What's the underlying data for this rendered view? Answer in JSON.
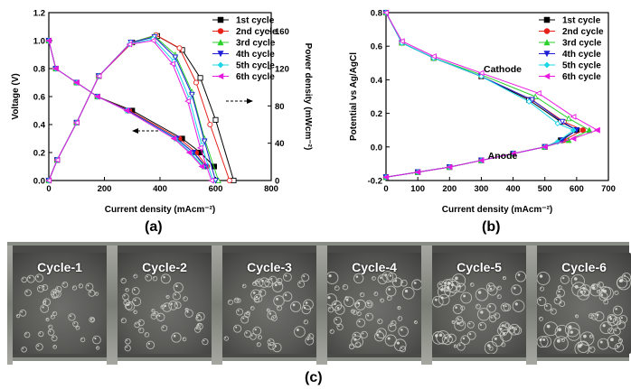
{
  "colors": {
    "1st cycle": "#000000",
    "2nd cycle": "#e8201a",
    "3rd cycle": "#2bd12b",
    "4th cycle": "#1f1fd6",
    "5th cycle": "#1ad6e8",
    "6th cycle": "#e81ae0"
  },
  "panel_labels": {
    "a": "(a)",
    "b": "(b)",
    "c": "(c)"
  },
  "chart_data": [
    {
      "type": "line",
      "panel": "(a)",
      "xlabel": "Current density (mAcm⁻²)",
      "ylabel": "Voltage (V)",
      "y2label": "Power density (mWcm⁻²)",
      "xlim": [
        0,
        800
      ],
      "ylim": [
        0,
        1.2
      ],
      "y2lim": [
        0,
        180
      ],
      "xticks": [
        "0",
        "200",
        "400",
        "600",
        "800"
      ],
      "yticks": [
        "0.0",
        "0.2",
        "0.4",
        "0.6",
        "0.8",
        "1.0",
        "1.2"
      ],
      "y2ticks": [
        "0",
        "40",
        "80",
        "120",
        "160"
      ],
      "legend": [
        "1st cycle",
        "2nd cycle",
        "3rd cycle",
        "4th cycle",
        "5th cycle",
        "6th cycle"
      ],
      "legend_position": "top-right",
      "voltage_series": [
        {
          "name": "1st cycle",
          "x": [
            0,
            25,
            100,
            175,
            300,
            480,
            545,
            595
          ],
          "y": [
            1.0,
            0.8,
            0.7,
            0.6,
            0.5,
            0.3,
            0.2,
            0.1
          ]
        },
        {
          "name": "2nd cycle",
          "x": [
            0,
            25,
            100,
            175,
            290,
            470,
            530,
            570
          ],
          "y": [
            1.0,
            0.8,
            0.7,
            0.6,
            0.5,
            0.3,
            0.2,
            0.1
          ]
        },
        {
          "name": "3rd cycle",
          "x": [
            0,
            25,
            100,
            175,
            285,
            460,
            520,
            560
          ],
          "y": [
            1.0,
            0.8,
            0.7,
            0.6,
            0.5,
            0.3,
            0.2,
            0.1
          ]
        },
        {
          "name": "4th cycle",
          "x": [
            0,
            25,
            100,
            175,
            285,
            460,
            520,
            565
          ],
          "y": [
            1.0,
            0.8,
            0.7,
            0.6,
            0.5,
            0.3,
            0.2,
            0.1
          ]
        },
        {
          "name": "5th cycle",
          "x": [
            0,
            25,
            100,
            175,
            280,
            455,
            510,
            555
          ],
          "y": [
            1.0,
            0.8,
            0.7,
            0.6,
            0.5,
            0.3,
            0.2,
            0.1
          ]
        },
        {
          "name": "6th cycle",
          "x": [
            0,
            25,
            100,
            175,
            280,
            450,
            505,
            550
          ],
          "y": [
            1.0,
            0.8,
            0.7,
            0.6,
            0.5,
            0.3,
            0.2,
            0.1
          ]
        }
      ],
      "power_series": [
        {
          "name": "1st cycle",
          "x": [
            0,
            30,
            100,
            180,
            300,
            390,
            480,
            545,
            600,
            665
          ],
          "y": [
            0,
            22,
            62,
            112,
            148,
            155,
            140,
            110,
            65,
            0
          ]
        },
        {
          "name": "2nd cycle",
          "x": [
            0,
            30,
            100,
            180,
            300,
            385,
            470,
            530,
            580,
            650
          ],
          "y": [
            0,
            22,
            62,
            112,
            148,
            156,
            142,
            105,
            60,
            0
          ]
        },
        {
          "name": "3rd cycle",
          "x": [
            0,
            30,
            100,
            180,
            295,
            380,
            455,
            515,
            560,
            610
          ],
          "y": [
            0,
            22,
            62,
            112,
            148,
            155,
            135,
            95,
            45,
            0
          ]
        },
        {
          "name": "4th cycle",
          "x": [
            0,
            30,
            100,
            180,
            295,
            380,
            455,
            515,
            560,
            600
          ],
          "y": [
            0,
            22,
            62,
            112,
            148,
            154,
            132,
            92,
            42,
            0
          ]
        },
        {
          "name": "5th cycle",
          "x": [
            0,
            30,
            100,
            180,
            290,
            375,
            450,
            505,
            550,
            590
          ],
          "y": [
            0,
            22,
            62,
            112,
            146,
            152,
            128,
            88,
            38,
            0
          ]
        },
        {
          "name": "6th cycle",
          "x": [
            0,
            30,
            100,
            180,
            290,
            375,
            445,
            500,
            545,
            585
          ],
          "y": [
            0,
            22,
            62,
            112,
            146,
            150,
            125,
            85,
            35,
            0
          ]
        }
      ]
    },
    {
      "type": "line",
      "panel": "(b)",
      "xlabel": "Current density (mAcm⁻²)",
      "ylabel": "Potential vs Ag/AgCl",
      "xlim": [
        0,
        700
      ],
      "ylim": [
        -0.2,
        0.8
      ],
      "xticks": [
        "0",
        "100",
        "200",
        "300",
        "400",
        "500",
        "600",
        "700"
      ],
      "yticks": [
        "-0.2",
        "0.0",
        "0.2",
        "0.4",
        "0.6",
        "0.8"
      ],
      "annotations": [
        "Cathode",
        "Anode"
      ],
      "legend": [
        "1st cycle",
        "2nd cycle",
        "3rd cycle",
        "4th cycle",
        "5th cycle",
        "6th cycle"
      ],
      "legend_position": "top-right",
      "cathode_series": [
        {
          "name": "1st cycle",
          "x": [
            0,
            50,
            150,
            300,
            450,
            550,
            600
          ],
          "y": [
            0.8,
            0.62,
            0.53,
            0.42,
            0.28,
            0.15,
            0.1
          ]
        },
        {
          "name": "2nd cycle",
          "x": [
            0,
            50,
            150,
            300,
            460,
            560,
            620
          ],
          "y": [
            0.8,
            0.62,
            0.53,
            0.42,
            0.28,
            0.15,
            0.1
          ]
        },
        {
          "name": "3rd cycle",
          "x": [
            0,
            50,
            150,
            300,
            470,
            575,
            640
          ],
          "y": [
            0.8,
            0.62,
            0.53,
            0.43,
            0.3,
            0.17,
            0.1
          ]
        },
        {
          "name": "4th cycle",
          "x": [
            0,
            50,
            150,
            300,
            460,
            555,
            600
          ],
          "y": [
            0.8,
            0.62,
            0.53,
            0.42,
            0.28,
            0.15,
            0.1
          ]
        },
        {
          "name": "5th cycle",
          "x": [
            0,
            50,
            150,
            300,
            450,
            540,
            590
          ],
          "y": [
            0.8,
            0.62,
            0.53,
            0.42,
            0.27,
            0.14,
            0.1
          ]
        },
        {
          "name": "6th cycle",
          "x": [
            0,
            50,
            150,
            300,
            480,
            590,
            665
          ],
          "y": [
            0.8,
            0.63,
            0.54,
            0.44,
            0.32,
            0.18,
            0.1
          ]
        }
      ],
      "anode_series": [
        {
          "name": "1st cycle",
          "x": [
            0,
            100,
            200,
            300,
            400,
            500,
            550,
            600
          ],
          "y": [
            -0.18,
            -0.15,
            -0.12,
            -0.08,
            -0.04,
            0.0,
            0.04,
            0.1
          ]
        },
        {
          "name": "2nd cycle",
          "x": [
            0,
            100,
            200,
            300,
            400,
            500,
            560,
            620
          ],
          "y": [
            -0.18,
            -0.15,
            -0.12,
            -0.08,
            -0.04,
            0.0,
            0.04,
            0.1
          ]
        },
        {
          "name": "3rd cycle",
          "x": [
            0,
            100,
            200,
            300,
            400,
            500,
            575,
            640
          ],
          "y": [
            -0.18,
            -0.15,
            -0.12,
            -0.08,
            -0.04,
            0.0,
            0.04,
            0.1
          ]
        },
        {
          "name": "4th cycle",
          "x": [
            0,
            100,
            200,
            300,
            400,
            500,
            555,
            600
          ],
          "y": [
            -0.18,
            -0.15,
            -0.12,
            -0.08,
            -0.04,
            0.0,
            0.04,
            0.1
          ]
        },
        {
          "name": "5th cycle",
          "x": [
            0,
            100,
            200,
            300,
            400,
            500,
            540,
            590
          ],
          "y": [
            -0.18,
            -0.15,
            -0.12,
            -0.08,
            -0.04,
            0.0,
            0.03,
            0.1
          ]
        },
        {
          "name": "6th cycle",
          "x": [
            0,
            100,
            200,
            300,
            400,
            500,
            590,
            665
          ],
          "y": [
            -0.18,
            -0.15,
            -0.12,
            -0.08,
            -0.04,
            0.0,
            0.05,
            0.1
          ]
        }
      ]
    }
  ],
  "photo_panel": {
    "labels": [
      "Cycle-1",
      "Cycle-2",
      "Cycle-3",
      "Cycle-4",
      "Cycle-5",
      "Cycle-6"
    ]
  }
}
